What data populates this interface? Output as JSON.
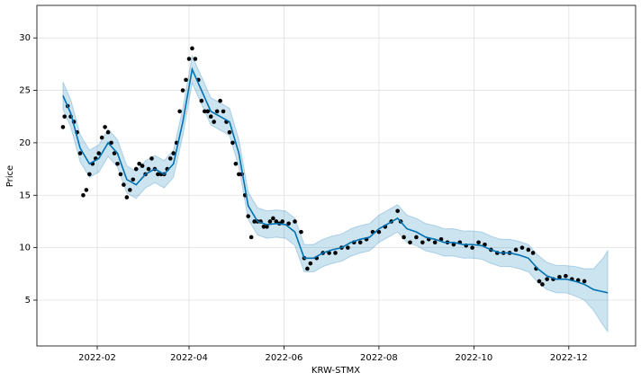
{
  "chart_data": {
    "type": "forecast",
    "xlabel": "KRW-STMX",
    "ylabel": "Price",
    "xlim": [
      -7.75,
      376.9
    ],
    "ylim": [
      0.63,
      33.1
    ],
    "xticks": [
      {
        "value": 31,
        "label": "2022-02"
      },
      {
        "value": 90,
        "label": "2022-04"
      },
      {
        "value": 151,
        "label": "2022-06"
      },
      {
        "value": 212,
        "label": "2022-08"
      },
      {
        "value": 273,
        "label": "2022-10"
      },
      {
        "value": 334,
        "label": "2022-12"
      }
    ],
    "yticks": [
      5,
      10,
      15,
      20,
      25,
      30
    ],
    "grid": true,
    "observed": {
      "color": "#000000",
      "x": [
        9,
        10,
        12,
        14,
        16,
        18,
        20,
        22,
        24,
        26,
        28,
        30,
        32,
        34,
        36,
        38,
        40,
        42,
        44,
        46,
        48,
        50,
        52,
        54,
        56,
        58,
        60,
        62,
        64,
        66,
        68,
        70,
        72,
        74,
        76,
        78,
        80,
        82,
        84,
        86,
        88,
        90,
        92,
        94,
        96,
        98,
        100,
        102,
        104,
        106,
        108,
        110,
        112,
        114,
        116,
        118,
        120,
        122,
        124,
        126,
        128,
        130,
        132,
        134,
        136,
        138,
        140,
        142,
        144,
        146,
        148,
        150,
        154,
        158,
        162,
        164,
        166,
        168,
        172,
        176,
        180,
        184,
        188,
        192,
        196,
        200,
        204,
        208,
        212,
        216,
        220,
        224,
        226,
        228,
        232,
        236,
        240,
        244,
        248,
        252,
        256,
        260,
        264,
        268,
        272,
        276,
        280,
        284,
        288,
        292,
        296,
        300,
        304,
        308,
        311,
        313,
        315,
        317,
        320,
        324,
        328,
        332,
        336,
        340,
        344
      ],
      "values": [
        21.5,
        22.5,
        23.5,
        22.5,
        22,
        21,
        19,
        15,
        15.5,
        17,
        18,
        18.5,
        19,
        20.5,
        21.5,
        21,
        20,
        19,
        18,
        17,
        16,
        14.8,
        15.5,
        16.5,
        17.5,
        18,
        17.8,
        17,
        17.5,
        18.5,
        17.5,
        17,
        17,
        17,
        17.5,
        18.5,
        19,
        20,
        23,
        25,
        26,
        28,
        29,
        28,
        26,
        24,
        23,
        23,
        22.5,
        22,
        23,
        24,
        23,
        22,
        21,
        20,
        18,
        17,
        17,
        15,
        13,
        11,
        12.5,
        12.5,
        12.5,
        12,
        12,
        12.5,
        12.8,
        12.5,
        12.3,
        12.5,
        12.3,
        12.5,
        11.5,
        9,
        8,
        8.5,
        9,
        9.5,
        9.5,
        9.5,
        10,
        10,
        10.5,
        10.5,
        10.8,
        11.5,
        11.5,
        12,
        12.5,
        13.5,
        12.5,
        11,
        10.5,
        11,
        10.5,
        10.8,
        10.5,
        10.8,
        10.5,
        10.3,
        10.5,
        10.2,
        10,
        10.5,
        10.3,
        9.8,
        9.5,
        9.5,
        9.5,
        9.8,
        10,
        9.8,
        9.5,
        8,
        6.8,
        6.5,
        7,
        7,
        7.2,
        7.3,
        7,
        6.9,
        6.8
      ]
    },
    "forecast": {
      "color": "#0072b2",
      "band_color": "#0072b2",
      "x": [
        9,
        14,
        20,
        26,
        32,
        38,
        44,
        50,
        56,
        62,
        68,
        74,
        80,
        86,
        92,
        98,
        104,
        110,
        116,
        122,
        128,
        134,
        140,
        146,
        152,
        158,
        164,
        170,
        176,
        182,
        188,
        194,
        200,
        206,
        212,
        218,
        224,
        230,
        236,
        242,
        248,
        254,
        260,
        266,
        272,
        278,
        284,
        290,
        296,
        302,
        308,
        314,
        320,
        326,
        332,
        338,
        344,
        350,
        356,
        359
      ],
      "values": [
        24.5,
        22.8,
        19.5,
        18,
        18.5,
        20,
        19,
        16.5,
        16,
        17,
        17.5,
        17,
        18,
        22,
        27,
        25,
        23,
        22.5,
        22,
        19,
        14,
        12.5,
        12.2,
        12.3,
        12.2,
        11.5,
        9,
        9,
        9.5,
        9.8,
        10,
        10.5,
        10.8,
        11,
        11.8,
        12.3,
        12.8,
        11.8,
        11.5,
        11,
        10.8,
        10.5,
        10.5,
        10.3,
        10.3,
        10.2,
        9.8,
        9.5,
        9.5,
        9.3,
        9,
        8,
        7.3,
        7,
        7,
        6.8,
        6.5,
        6,
        5.8,
        5.7
      ],
      "lower": [
        23.2,
        21.5,
        18.2,
        16.7,
        17.2,
        18.7,
        17.7,
        15.2,
        14.7,
        15.7,
        16.2,
        15.7,
        16.7,
        20.7,
        25.7,
        23.7,
        21.7,
        21.2,
        20.7,
        17.7,
        12.7,
        11.2,
        10.9,
        11,
        10.9,
        10.2,
        7.7,
        7.7,
        8.2,
        8.5,
        8.7,
        9.2,
        9.5,
        9.7,
        10.5,
        11,
        11.5,
        10.5,
        10.2,
        9.7,
        9.5,
        9.2,
        9.2,
        9,
        9,
        8.9,
        8.5,
        8.2,
        8.2,
        8,
        7.7,
        6.7,
        6,
        5.7,
        5.7,
        5.4,
        5,
        4,
        2.6,
        2
      ],
      "upper": [
        25.8,
        24.1,
        20.8,
        19.3,
        19.8,
        21.3,
        20.3,
        17.8,
        17.3,
        18.3,
        18.8,
        18.3,
        19.3,
        23.3,
        28.3,
        26.3,
        24.3,
        23.8,
        23.3,
        20.3,
        15.3,
        13.8,
        13.5,
        13.6,
        13.5,
        12.8,
        10.3,
        10.3,
        10.8,
        11.1,
        11.3,
        11.8,
        12.1,
        12.3,
        13.1,
        13.6,
        14.1,
        13.1,
        12.8,
        12.3,
        12.1,
        11.8,
        11.8,
        11.6,
        11.6,
        11.5,
        11.1,
        10.8,
        10.8,
        10.6,
        10.3,
        9.3,
        8.6,
        8.3,
        8.3,
        8.2,
        8,
        8,
        9,
        9.7
      ]
    }
  }
}
